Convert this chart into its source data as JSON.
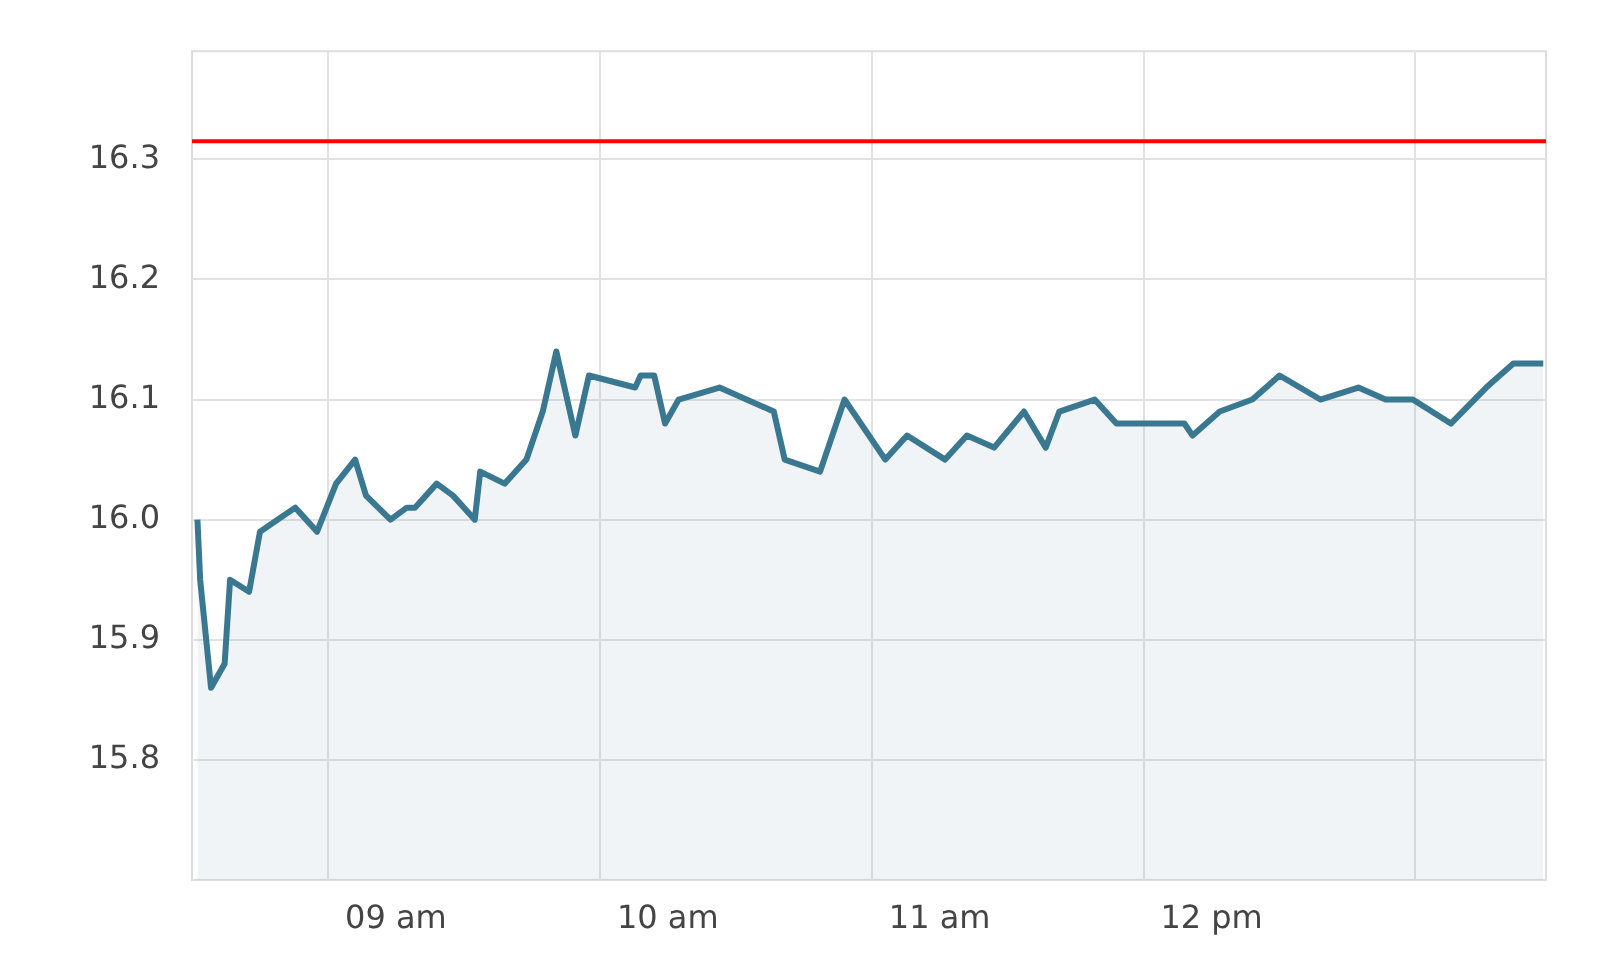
{
  "chart_data": {
    "type": "area",
    "x": [
      8.27,
      8.28,
      8.32,
      8.37,
      8.39,
      8.46,
      8.5,
      8.63,
      8.71,
      8.78,
      8.85,
      8.89,
      8.98,
      9.04,
      9.07,
      9.15,
      9.21,
      9.29,
      9.31,
      9.4,
      9.48,
      9.54,
      9.59,
      9.66,
      9.71,
      9.88,
      9.9,
      9.95,
      9.99,
      10.04,
      10.19,
      10.39,
      10.43,
      10.56,
      10.65,
      10.8,
      10.88,
      11.02,
      11.1,
      11.2,
      11.31,
      11.39,
      11.44,
      11.57,
      11.65,
      11.9,
      11.93,
      12.03,
      12.15,
      12.25,
      12.4,
      12.54,
      12.64,
      12.74,
      12.88,
      13.01,
      13.11,
      13.22
    ],
    "series": [
      {
        "color": "#3a7891",
        "values": [
          16.0,
          15.95,
          15.86,
          15.88,
          15.95,
          15.94,
          15.99,
          16.01,
          15.99,
          16.03,
          16.05,
          16.02,
          16.0,
          16.01,
          16.01,
          16.03,
          16.02,
          16.0,
          16.04,
          16.03,
          16.05,
          16.09,
          16.14,
          16.07,
          16.12,
          16.11,
          16.12,
          16.12,
          16.08,
          16.1,
          16.11,
          16.09,
          16.05,
          16.04,
          16.1,
          16.05,
          16.07,
          16.05,
          16.07,
          16.06,
          16.09,
          16.06,
          16.09,
          16.1,
          16.08,
          16.08,
          16.07,
          16.09,
          16.1,
          16.12,
          16.1,
          16.11,
          16.1,
          16.1,
          16.08,
          16.11,
          16.13,
          16.13
        ]
      }
    ],
    "xlim": [
      8.25,
      13.23
    ],
    "xticks": [
      {
        "value": 8.75,
        "label": null
      },
      {
        "value": 9,
        "label": "09 am"
      },
      {
        "value": 9.75,
        "label": null
      },
      {
        "value": 10,
        "label": "10 am"
      },
      {
        "value": 10.75,
        "label": null
      },
      {
        "value": 11,
        "label": "11 am"
      },
      {
        "value": 11.75,
        "label": null
      },
      {
        "value": 12,
        "label": "12 pm"
      },
      {
        "value": 12.75,
        "label": null
      }
    ],
    "ylim": [
      15.7,
      16.39
    ],
    "yticks": [
      15.8,
      15.9,
      {
        "value": 16,
        "label": "16.0"
      },
      16.1,
      16.2,
      16.3
    ],
    "ref_lines": [
      {
        "axis": "y",
        "value": 16.315,
        "color": "#ff0000"
      }
    ],
    "grid": true,
    "legend": false
  }
}
